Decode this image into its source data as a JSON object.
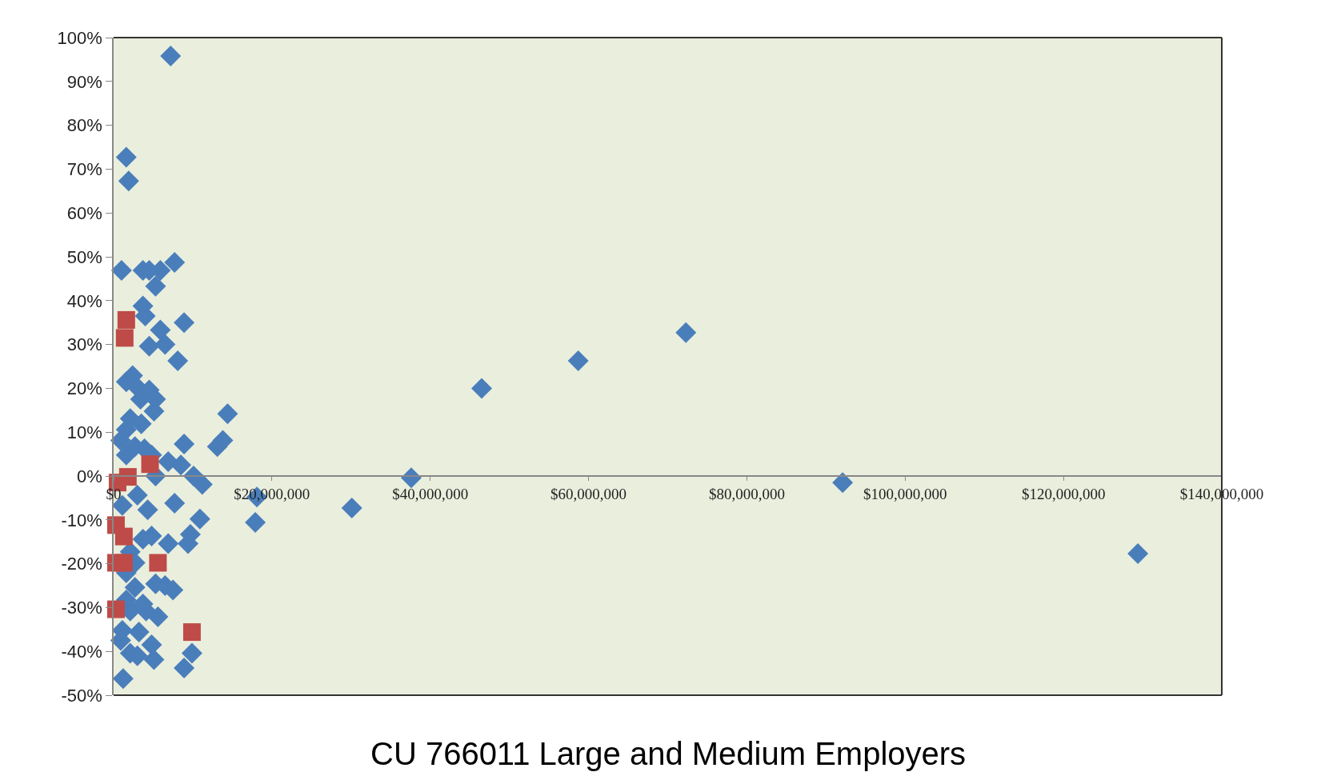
{
  "chart_data": {
    "type": "scatter",
    "title": "CU 766011 Large and Medium Employers",
    "xlim": [
      0,
      140000000
    ],
    "ylim": [
      -50,
      100
    ],
    "xticks": [
      {
        "value": 0,
        "label": "$0"
      },
      {
        "value": 20000000,
        "label": "$20,000,000"
      },
      {
        "value": 40000000,
        "label": "$40,000,000"
      },
      {
        "value": 60000000,
        "label": "$60,000,000"
      },
      {
        "value": 80000000,
        "label": "$80,000,000"
      },
      {
        "value": 100000000,
        "label": "$100,000,000"
      },
      {
        "value": 120000000,
        "label": "$120,000,000"
      },
      {
        "value": 140000000,
        "label": "$140,000,000"
      }
    ],
    "yticks": [
      {
        "value": -50,
        "label": "-50%"
      },
      {
        "value": -40,
        "label": "-40%"
      },
      {
        "value": -30,
        "label": "-30%"
      },
      {
        "value": -20,
        "label": "-20%"
      },
      {
        "value": -10,
        "label": "-10%"
      },
      {
        "value": 0,
        "label": "0%"
      },
      {
        "value": 10,
        "label": "10%"
      },
      {
        "value": 20,
        "label": "20%"
      },
      {
        "value": 30,
        "label": "30%"
      },
      {
        "value": 40,
        "label": "40%"
      },
      {
        "value": 50,
        "label": "50%"
      },
      {
        "value": 60,
        "label": "60%"
      },
      {
        "value": 70,
        "label": "70%"
      },
      {
        "value": 80,
        "label": "80%"
      },
      {
        "value": 90,
        "label": "90%"
      },
      {
        "value": 100,
        "label": "100%"
      }
    ],
    "grid": false,
    "series": [
      {
        "color": "#4a7ebb",
        "marker": "diamond",
        "x": [
          7200000,
          1600000,
          1900000,
          1000000,
          3700000,
          4500000,
          5900000,
          7700000,
          5300000,
          3700000,
          4000000,
          8900000,
          5900000,
          6500000,
          4500000,
          8100000,
          1600000,
          2400000,
          3000000,
          4500000,
          3400000,
          5300000,
          5100000,
          2100000,
          3500000,
          14400000,
          13800000,
          13100000,
          900000,
          1600000,
          2700000,
          3900000,
          8900000,
          1600000,
          4800000,
          6900000,
          8500000,
          10100000,
          11200000,
          5300000,
          37600000,
          92100000,
          129400000,
          46500000,
          58700000,
          72300000,
          18100000,
          30100000,
          17900000,
          10900000,
          7700000,
          3000000,
          4300000,
          1100000,
          9700000,
          9400000,
          6900000,
          4800000,
          3700000,
          2100000,
          2700000,
          1600000,
          5300000,
          6500000,
          7500000,
          2700000,
          1600000,
          3700000,
          2100000,
          4100000,
          5600000,
          1100000,
          3200000,
          900000,
          4800000,
          2100000,
          3000000,
          5100000,
          9900000,
          8900000,
          1200000
        ],
        "values": [
          95.8,
          72.7,
          67.3,
          46.9,
          46.9,
          46.9,
          46.9,
          48.7,
          43.3,
          38.8,
          36.5,
          35.0,
          33.3,
          30.0,
          29.6,
          26.3,
          21.5,
          22.9,
          20.2,
          19.6,
          17.5,
          17.5,
          14.8,
          13.1,
          11.9,
          14.2,
          8.1,
          6.7,
          8.1,
          10.6,
          6.7,
          6.2,
          7.3,
          4.8,
          4.8,
          3.3,
          2.5,
          0,
          -1.9,
          0,
          -0.4,
          -1.5,
          -17.7,
          20.0,
          26.3,
          32.7,
          -4.8,
          -7.3,
          -10.6,
          -9.8,
          -6.2,
          -4.4,
          -7.7,
          -6.7,
          -13.3,
          -15.4,
          -15.4,
          -13.7,
          -14.4,
          -17.3,
          -19.8,
          -22.1,
          -24.6,
          -25.0,
          -26.0,
          -25.4,
          -28.3,
          -29.2,
          -30.8,
          -30.8,
          -32.1,
          -35.2,
          -35.6,
          -37.5,
          -38.5,
          -40.4,
          -41.0,
          -41.9,
          -40.4,
          -43.8,
          -46.2
        ]
      },
      {
        "color": "#be4b48",
        "marker": "square",
        "x": [
          1600000,
          1400000,
          4600000,
          1800000,
          500000,
          300000,
          1300000,
          300000,
          1300000,
          5600000,
          300000,
          9900000
        ],
        "values": [
          35.6,
          31.5,
          2.7,
          -0.2,
          -1.5,
          -11.2,
          -13.8,
          -19.8,
          -19.8,
          -19.8,
          -30.4,
          -35.6
        ]
      }
    ]
  }
}
